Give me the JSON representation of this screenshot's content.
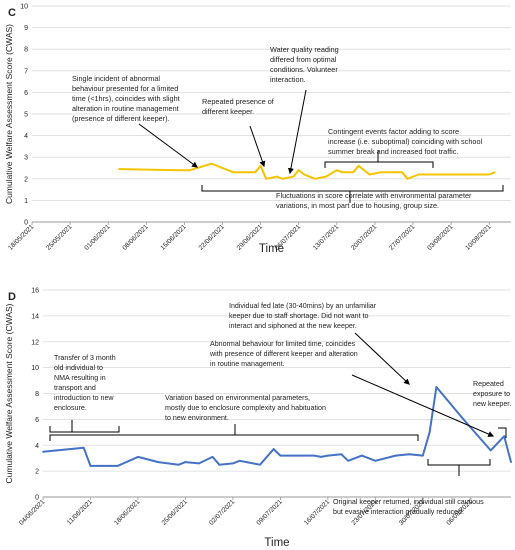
{
  "chart_data": [
    {
      "panel": "C",
      "type": "line",
      "xlabel": "Time",
      "ylabel": "Cumulative Welfare Assessment Score (CWAS)",
      "ylim": [
        0,
        10
      ],
      "yticks": [
        0,
        1,
        2,
        3,
        4,
        5,
        6,
        7,
        8,
        9,
        10
      ],
      "xlim": [
        "18/05/2021",
        "14/08/2021"
      ],
      "xticks": [
        "18/05/2021",
        "25/05/2021",
        "01/06/2021",
        "08/06/2021",
        "15/06/2021",
        "22/06/2021",
        "29/06/2021",
        "06/07/2021",
        "13/07/2021",
        "20/07/2021",
        "27/07/2021",
        "03/08/2021",
        "10/08/2021"
      ],
      "grid": "horizontal",
      "series": [
        {
          "color": "#f5c400",
          "x": [
            "03/06/2021",
            "14/06/2021",
            "16/06/2021",
            "20/06/2021",
            "22/06/2021",
            "24/06/2021",
            "25/06/2021",
            "28/06/2021",
            "29/06/2021",
            "30/06/2021",
            "02/07/2021",
            "03/07/2021",
            "05/07/2021",
            "06/07/2021",
            "07/07/2021",
            "09/07/2021",
            "11/07/2021",
            "13/07/2021",
            "14/07/2021",
            "16/07/2021",
            "17/07/2021",
            "19/07/2021",
            "21/07/2021",
            "23/07/2021",
            "25/07/2021",
            "26/07/2021",
            "28/07/2021",
            "10/08/2021",
            "11/08/2021"
          ],
          "y": [
            2.45,
            2.4,
            2.4,
            2.7,
            2.5,
            2.3,
            2.3,
            2.3,
            2.6,
            2.0,
            2.1,
            2.0,
            2.1,
            2.4,
            2.2,
            2.0,
            2.1,
            2.4,
            2.3,
            2.3,
            2.6,
            2.2,
            2.3,
            2.3,
            2.3,
            2.0,
            2.2,
            2.2,
            2.3
          ]
        }
      ],
      "annotations": [
        {
          "text": [
            "Single incident of abnormal",
            "behaviour presented for a limited",
            "time (<1hrs), coincides with slight",
            "alteration in routine management",
            "(presence of different keeper)."
          ]
        },
        {
          "text": [
            "Repeated presence of",
            "different keeper."
          ]
        },
        {
          "text": [
            "Water quality reading",
            "differed from optimal",
            "conditions. Volunteer",
            "interaction."
          ]
        },
        {
          "text": [
            "Contingent events factor adding to score",
            "increase (i.e. suboptimal) coinciding with school",
            "summer break and increased foot traffic."
          ]
        },
        {
          "text": [
            "Fluctuations in score correlate with environmental parameter",
            "variations, in most part due to housing, group size."
          ]
        }
      ]
    },
    {
      "panel": "D",
      "type": "line",
      "xlabel": "Time",
      "ylabel": "Cumulative Welfare Assessment Score (CWAS)",
      "ylim": [
        0,
        16
      ],
      "yticks": [
        0,
        2,
        4,
        6,
        8,
        10,
        12,
        14,
        16
      ],
      "xlim": [
        "04/06/2021",
        "12/08/2021"
      ],
      "xticks": [
        "04/06/2021",
        "11/06/2021",
        "18/06/2021",
        "25/06/2021",
        "02/07/2021",
        "09/07/2021",
        "16/07/2021",
        "23/07/2021",
        "30/07/2021",
        "06/08/2021"
      ],
      "grid": "horizontal",
      "series": [
        {
          "color": "#4472c4",
          "x": [
            "04/06/2021",
            "10/06/2021",
            "11/06/2021",
            "14/06/2021",
            "15/06/2021",
            "18/06/2021",
            "21/06/2021",
            "24/06/2021",
            "25/06/2021",
            "27/06/2021",
            "29/06/2021",
            "30/06/2021",
            "02/07/2021",
            "03/07/2021",
            "04/07/2021",
            "06/07/2021",
            "08/07/2021",
            "09/07/2021",
            "10/07/2021",
            "12/07/2021",
            "14/07/2021",
            "15/07/2021",
            "16/07/2021",
            "18/07/2021",
            "19/07/2021",
            "21/07/2021",
            "23/07/2021",
            "26/07/2021",
            "28/07/2021",
            "30/07/2021",
            "31/07/2021",
            "01/08/2021",
            "05/08/2021",
            "09/08/2021",
            "11/08/2021",
            "12/08/2021"
          ],
          "y": [
            3.5,
            3.8,
            2.4,
            2.4,
            2.4,
            3.1,
            2.7,
            2.5,
            2.7,
            2.6,
            3.1,
            2.5,
            2.6,
            2.8,
            2.7,
            2.5,
            3.7,
            3.2,
            3.2,
            3.2,
            3.2,
            3.1,
            3.2,
            3.3,
            2.8,
            3.2,
            2.8,
            3.2,
            3.3,
            3.2,
            5.0,
            8.5,
            6.0,
            3.6,
            4.7,
            2.7
          ]
        }
      ],
      "annotations": [
        {
          "text": [
            "Transfer of 3 month",
            "old individual to",
            "NMA resulting in",
            "transport and",
            "introduction to new",
            "enclosure."
          ]
        },
        {
          "text": [
            "Variation based on environmental parameters,",
            "mostly due to enclosure complexity and habituation",
            "to new environment."
          ]
        },
        {
          "text": [
            "Individual fed late (30-40mins) by an unfamiliar",
            "keeper due to staff shortage. Did not want to",
            "interact and siphoned at the new keeper."
          ]
        },
        {
          "text": [
            "Abnormal behaviour for limited time, coincides",
            "with presence of different keeper and alteration",
            "in routine management."
          ]
        },
        {
          "text": [
            "Repeated",
            "exposure to",
            "new keeper."
          ]
        },
        {
          "text": [
            "Original keeper returned, individual still cautious",
            "but evasive interaction gradually reduced."
          ]
        }
      ]
    }
  ]
}
